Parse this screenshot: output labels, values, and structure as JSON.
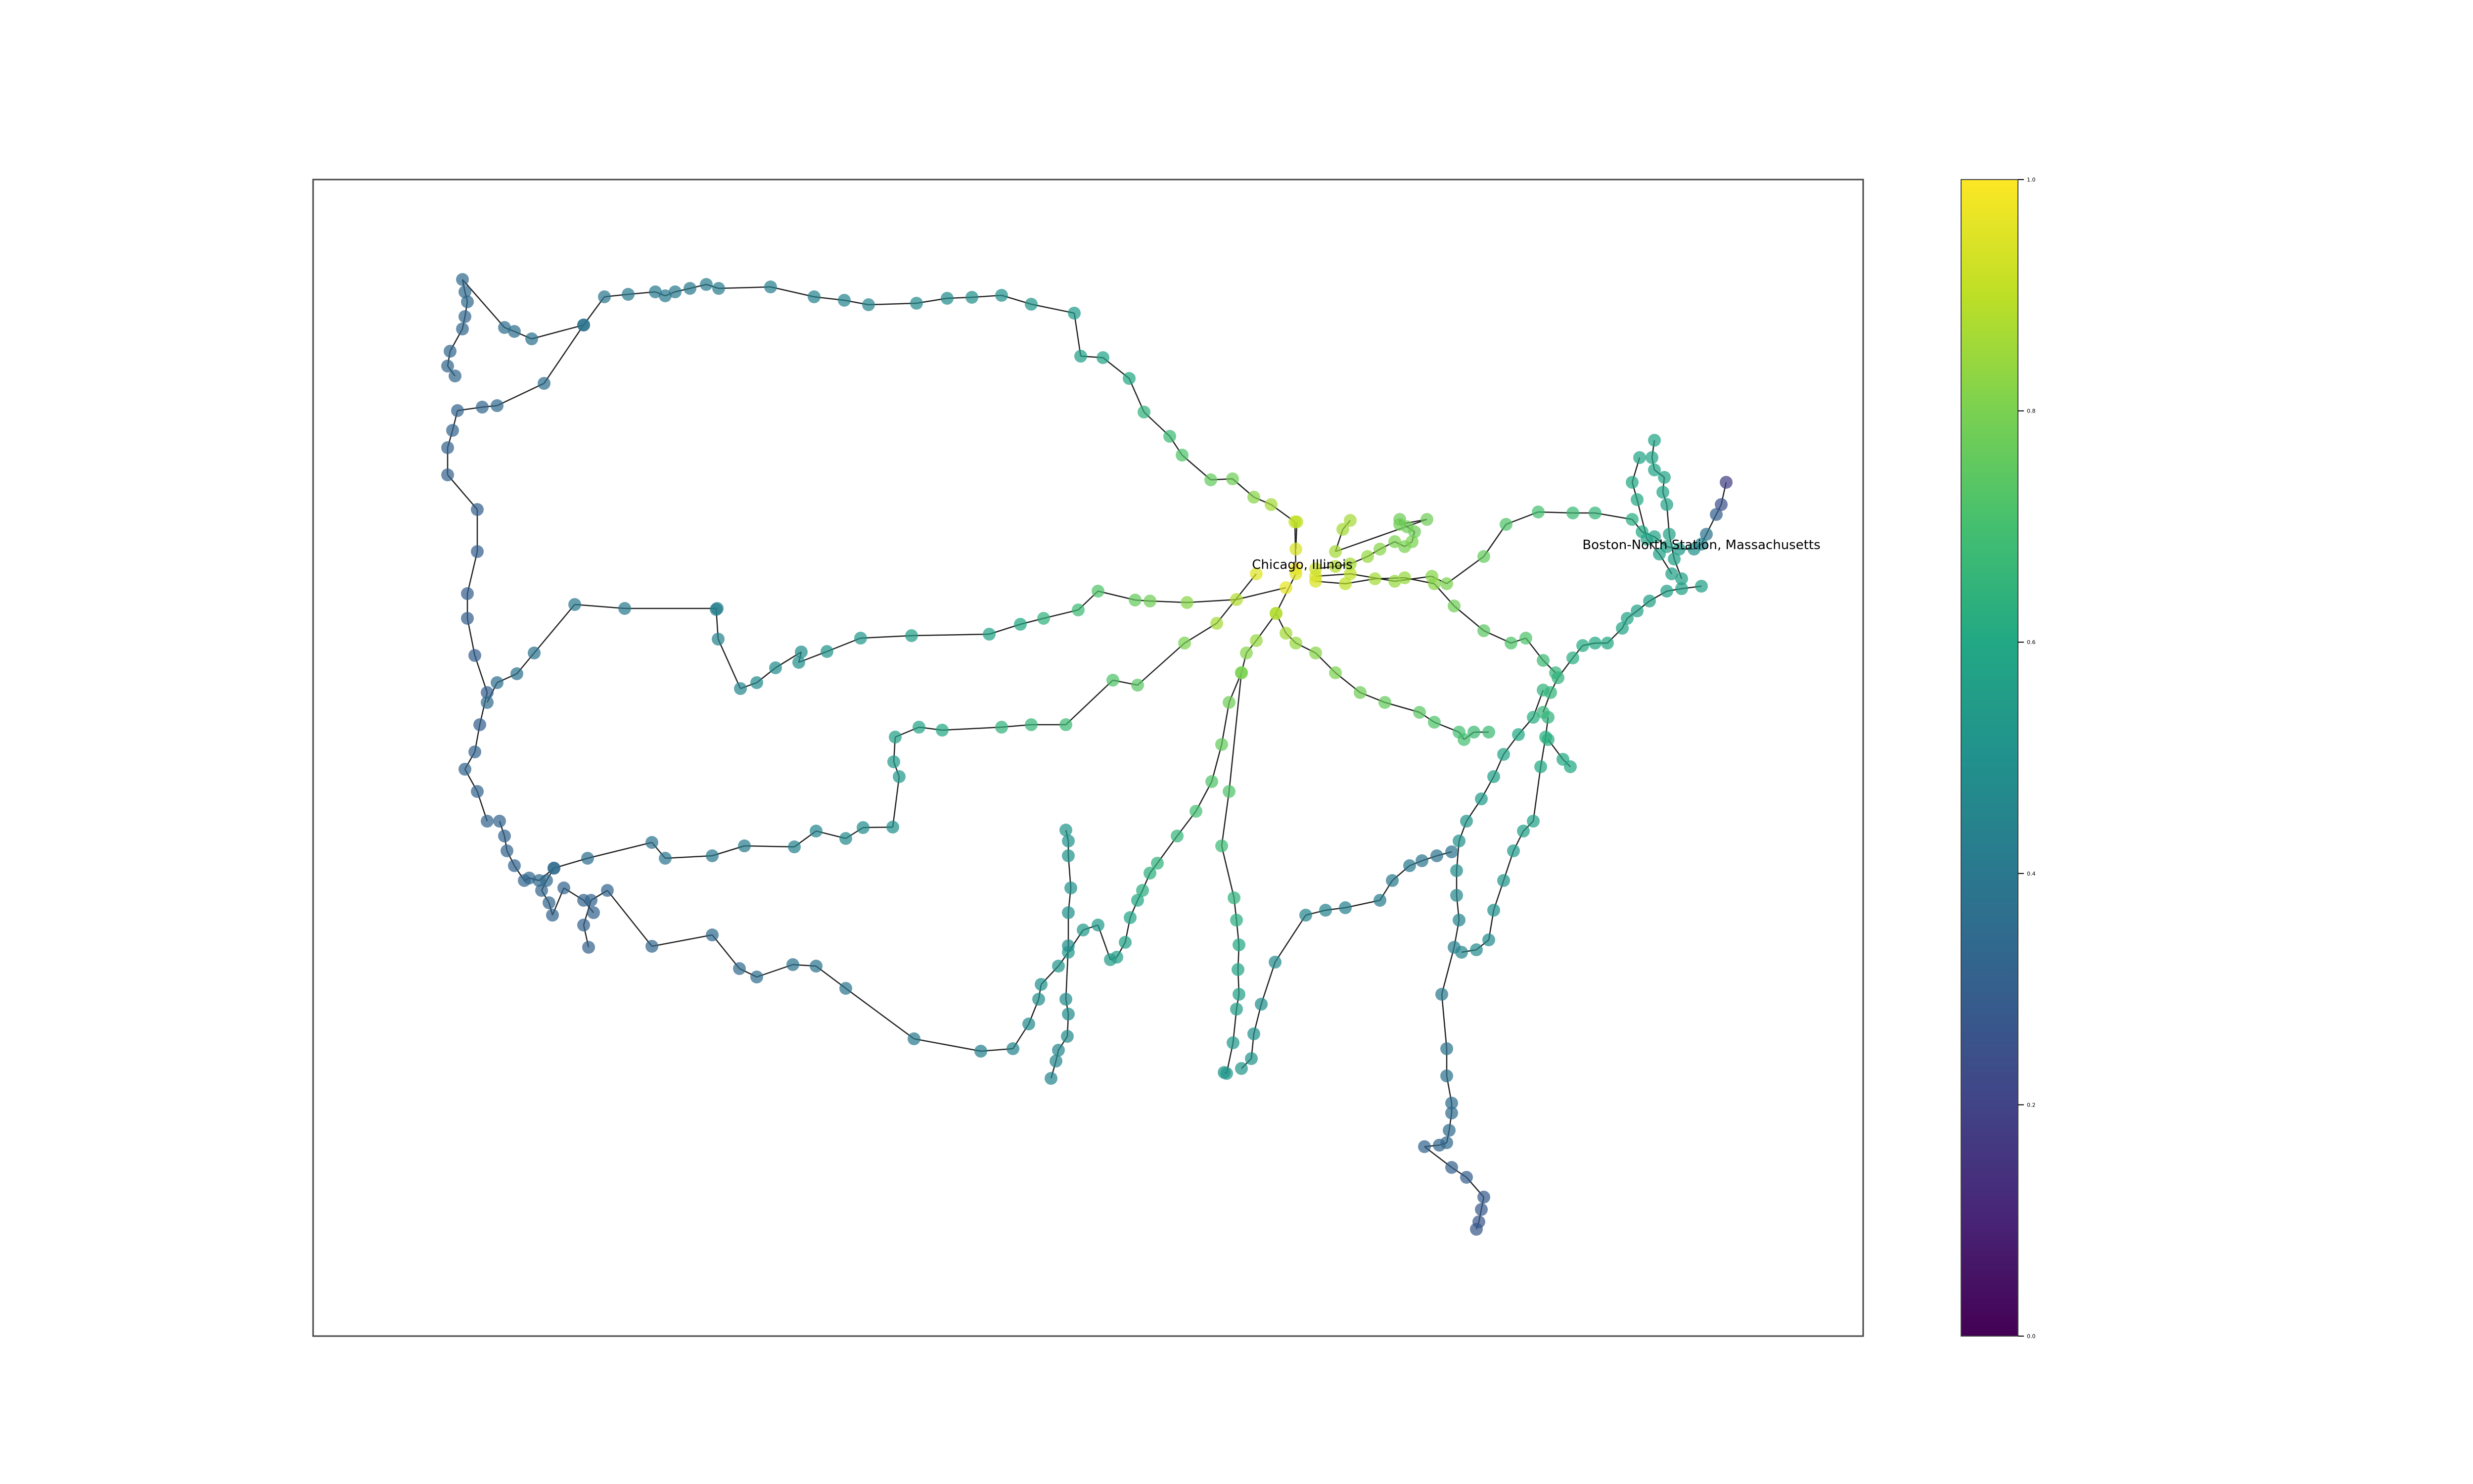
{
  "graph": {
    "colormap": "viridis",
    "color_min": 0.0,
    "color_max": 1.0,
    "labels": [
      {
        "text": "Chicago, Illinois"
      },
      {
        "text": "Boston-North Station, Massachusetts"
      }
    ]
  },
  "colorbar": {
    "ticks": [
      "0.0",
      "0.2",
      "0.4",
      "0.6",
      "0.8",
      "1.0"
    ]
  }
}
